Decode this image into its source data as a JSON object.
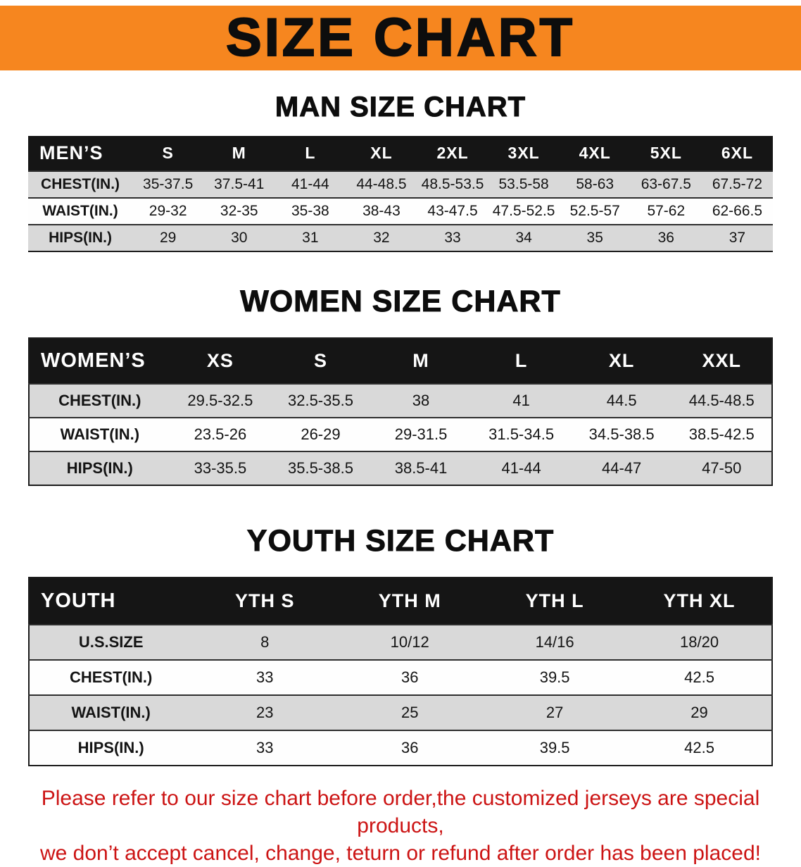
{
  "colors": {
    "banner_orange": "#f6861f",
    "header_black": "#151515",
    "row_shade": "#d9d9d9",
    "disclaimer_red": "#cc1414"
  },
  "banner": {
    "title": "SIZE CHART"
  },
  "sections": [
    {
      "id": "men",
      "heading": "MAN SIZE CHART",
      "header": [
        "MEN’S",
        "S",
        "M",
        "L",
        "XL",
        "2XL",
        "3XL",
        "4XL",
        "5XL",
        "6XL"
      ],
      "rows": [
        [
          "CHEST(IN.)",
          "35-37.5",
          "37.5-41",
          "41-44",
          "44-48.5",
          "48.5-53.5",
          "53.5-58",
          "58-63",
          "63-67.5",
          "67.5-72"
        ],
        [
          "WAIST(IN.)",
          "29-32",
          "32-35",
          "35-38",
          "38-43",
          "43-47.5",
          "47.5-52.5",
          "52.5-57",
          "57-62",
          "62-66.5"
        ],
        [
          "HIPS(IN.)",
          "29",
          "30",
          "31",
          "32",
          "33",
          "34",
          "35",
          "36",
          "37"
        ]
      ]
    },
    {
      "id": "women",
      "heading": "WOMEN SIZE CHART",
      "header": [
        "WOMEN’S",
        "XS",
        "S",
        "M",
        "L",
        "XL",
        "XXL"
      ],
      "rows": [
        [
          "CHEST(IN.)",
          "29.5-32.5",
          "32.5-35.5",
          "38",
          "41",
          "44.5",
          "44.5-48.5"
        ],
        [
          "WAIST(IN.)",
          "23.5-26",
          "26-29",
          "29-31.5",
          "31.5-34.5",
          "34.5-38.5",
          "38.5-42.5"
        ],
        [
          "HIPS(IN.)",
          "33-35.5",
          "35.5-38.5",
          "38.5-41",
          "41-44",
          "44-47",
          "47-50"
        ]
      ]
    },
    {
      "id": "youth",
      "heading": "YOUTH SIZE CHART",
      "header": [
        "YOUTH",
        "YTH S",
        "YTH M",
        "YTH L",
        "YTH XL"
      ],
      "rows": [
        [
          "U.S.SIZE",
          "8",
          "10/12",
          "14/16",
          "18/20"
        ],
        [
          "CHEST(IN.)",
          "33",
          "36",
          "39.5",
          "42.5"
        ],
        [
          "WAIST(IN.)",
          "23",
          "25",
          "27",
          "29"
        ],
        [
          "HIPS(IN.)",
          "33",
          "36",
          "39.5",
          "42.5"
        ]
      ]
    }
  ],
  "disclaimer": {
    "line1": "Please refer to our size chart before order,the customized jerseys are special products,",
    "line2": "we don’t accept cancel, change, teturn or refund after order has been placed!"
  }
}
